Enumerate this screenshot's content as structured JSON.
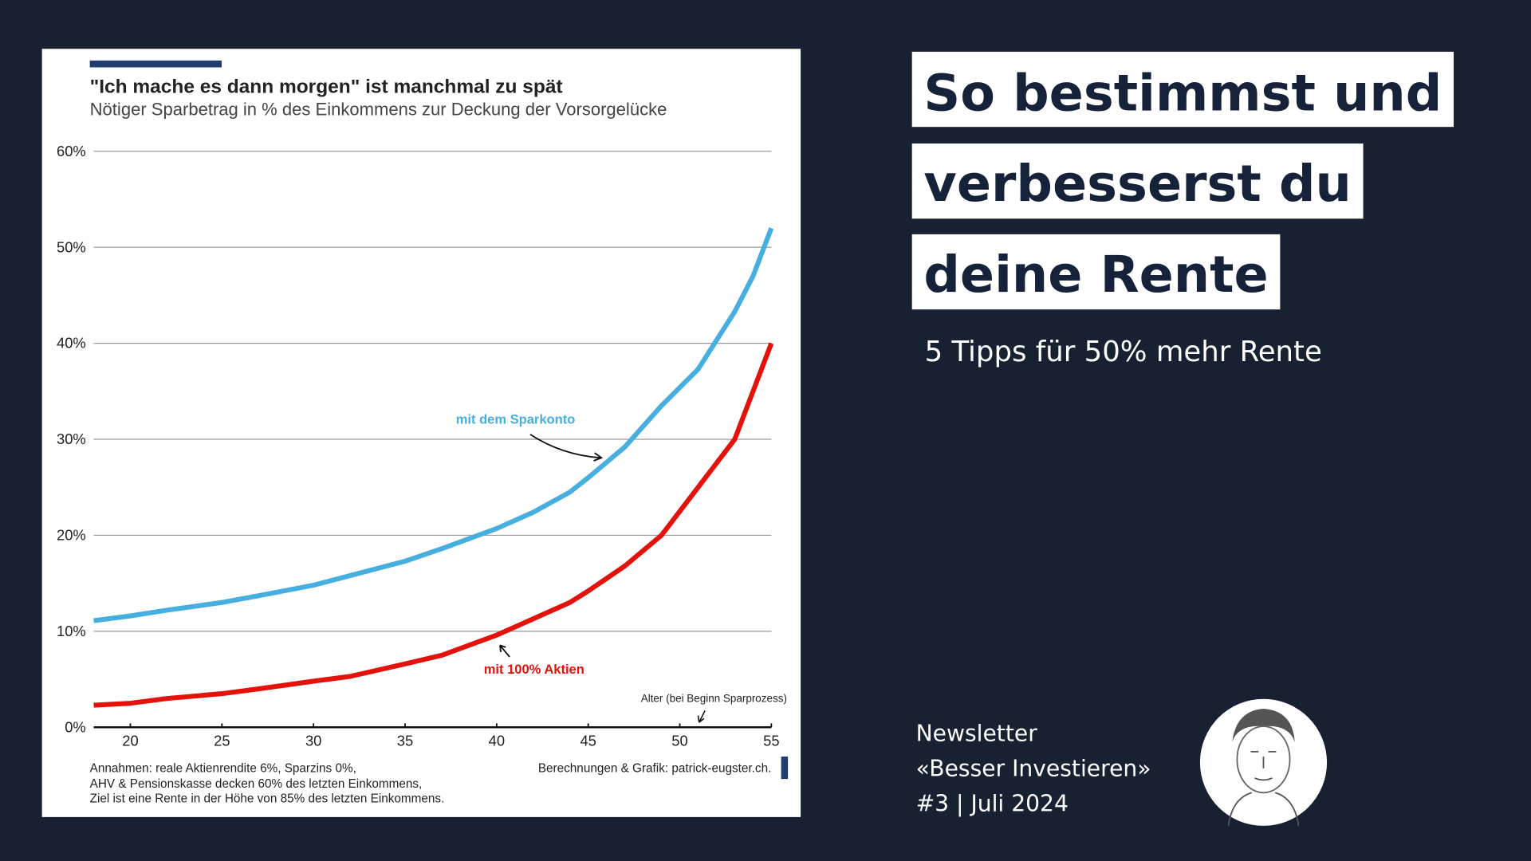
{
  "chart_data": {
    "type": "line",
    "title": "\"Ich mache es dann morgen\" ist manchmal zu spät",
    "subtitle": "Nötiger Sparbetrag in % des Einkommens zur Deckung der Vorsorgelücke",
    "x": [
      18,
      20,
      22,
      25,
      27,
      30,
      32,
      35,
      37,
      40,
      42,
      44,
      45,
      47,
      49,
      51,
      53,
      54,
      55
    ],
    "series": [
      {
        "name": "mit dem Sparkonto",
        "color": "#47aee0",
        "values": [
          11.1,
          11.6,
          12.2,
          13.0,
          13.7,
          14.8,
          15.8,
          17.3,
          18.6,
          20.7,
          22.4,
          24.5,
          26,
          29.2,
          33.5,
          37.3,
          43.3,
          47,
          52
        ]
      },
      {
        "name": "mit 100% Aktien",
        "color": "#e3120b",
        "values": [
          2.3,
          2.5,
          3,
          3.5,
          4,
          4.8,
          5.3,
          6.6,
          7.5,
          9.6,
          11.3,
          13,
          14.2,
          16.8,
          20,
          25,
          30,
          35,
          40
        ]
      }
    ],
    "xlabel": "Alter (bei Beginn Sparprozess)",
    "xlim": [
      18,
      55
    ],
    "xticks": [
      20,
      25,
      30,
      35,
      40,
      45,
      50,
      55
    ],
    "ylim": [
      0,
      60
    ],
    "yticks": [
      {
        "value": 0,
        "label": "0%"
      },
      {
        "value": 10,
        "label": "10%"
      },
      {
        "value": 20,
        "label": "20%"
      },
      {
        "value": 30,
        "label": "30%"
      },
      {
        "value": 40,
        "label": "40%"
      },
      {
        "value": 50,
        "label": "50%"
      },
      {
        "value": 60,
        "label": "60%"
      }
    ],
    "grid": true,
    "notes": [
      "Annahmen: reale Aktienrendite 6%, Sparzins 0%,",
      "AHV & Pensionskasse decken 60% des letzten Einkommens,",
      "Ziel ist eine Rente in der Höhe von 85% des letzten Einkommens."
    ],
    "source": "Berechnungen & Grafik: patrick-eugster.ch."
  },
  "headline": {
    "lines": [
      "So bestimmst und",
      "verbesserst du",
      "deine Rente"
    ],
    "subtitle": "5 Tipps für 50% mehr Rente"
  },
  "newsletter": {
    "lines": [
      "Newsletter",
      "«Besser Investieren»",
      "#3 | Juli 2024"
    ]
  }
}
